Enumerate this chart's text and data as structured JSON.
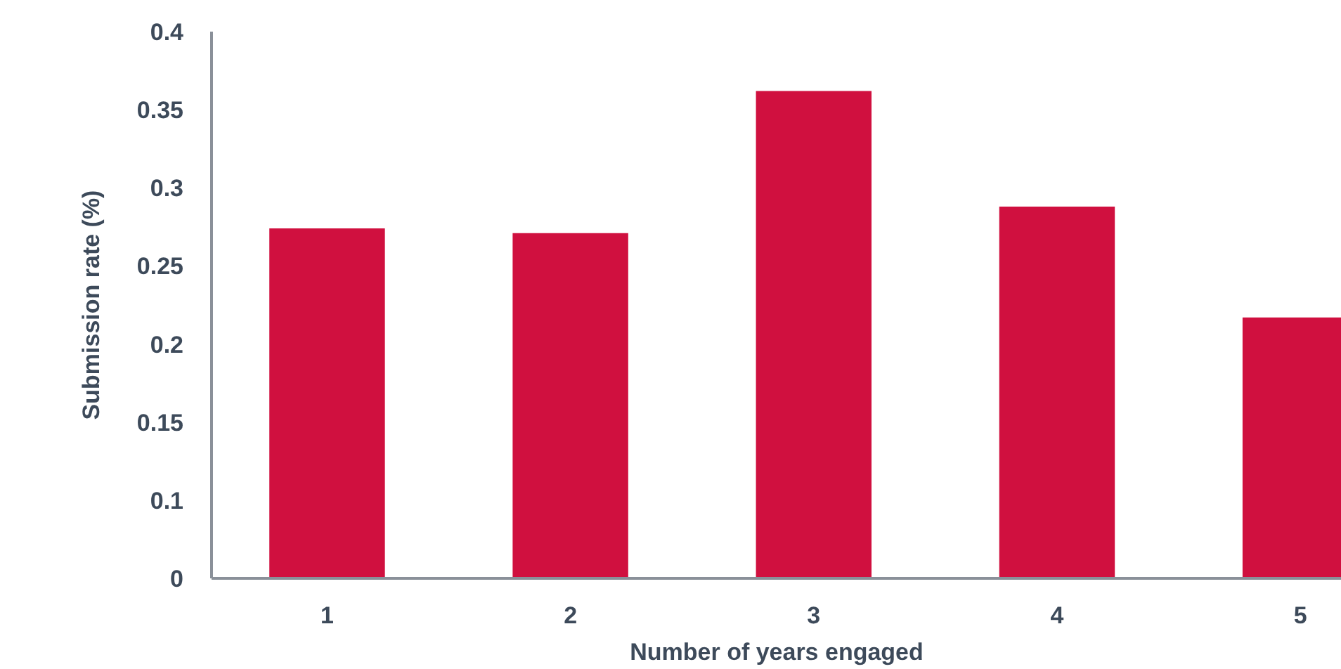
{
  "chart_data": {
    "type": "bar",
    "xlabel": "Number of years engaged",
    "ylabel": "Submission rate (%)",
    "categories": [
      "1",
      "2",
      "3",
      "4",
      "5"
    ],
    "values": [
      0.274,
      0.271,
      0.362,
      0.288,
      0.217
    ],
    "color": "#d0103f",
    "ylim": [
      0.05,
      0.4
    ],
    "yticks": [
      {
        "value": 0.05,
        "label": "0"
      },
      0.1,
      0.15,
      0.2,
      0.25,
      0.3,
      0.35,
      0.4
    ],
    "grid": false
  }
}
